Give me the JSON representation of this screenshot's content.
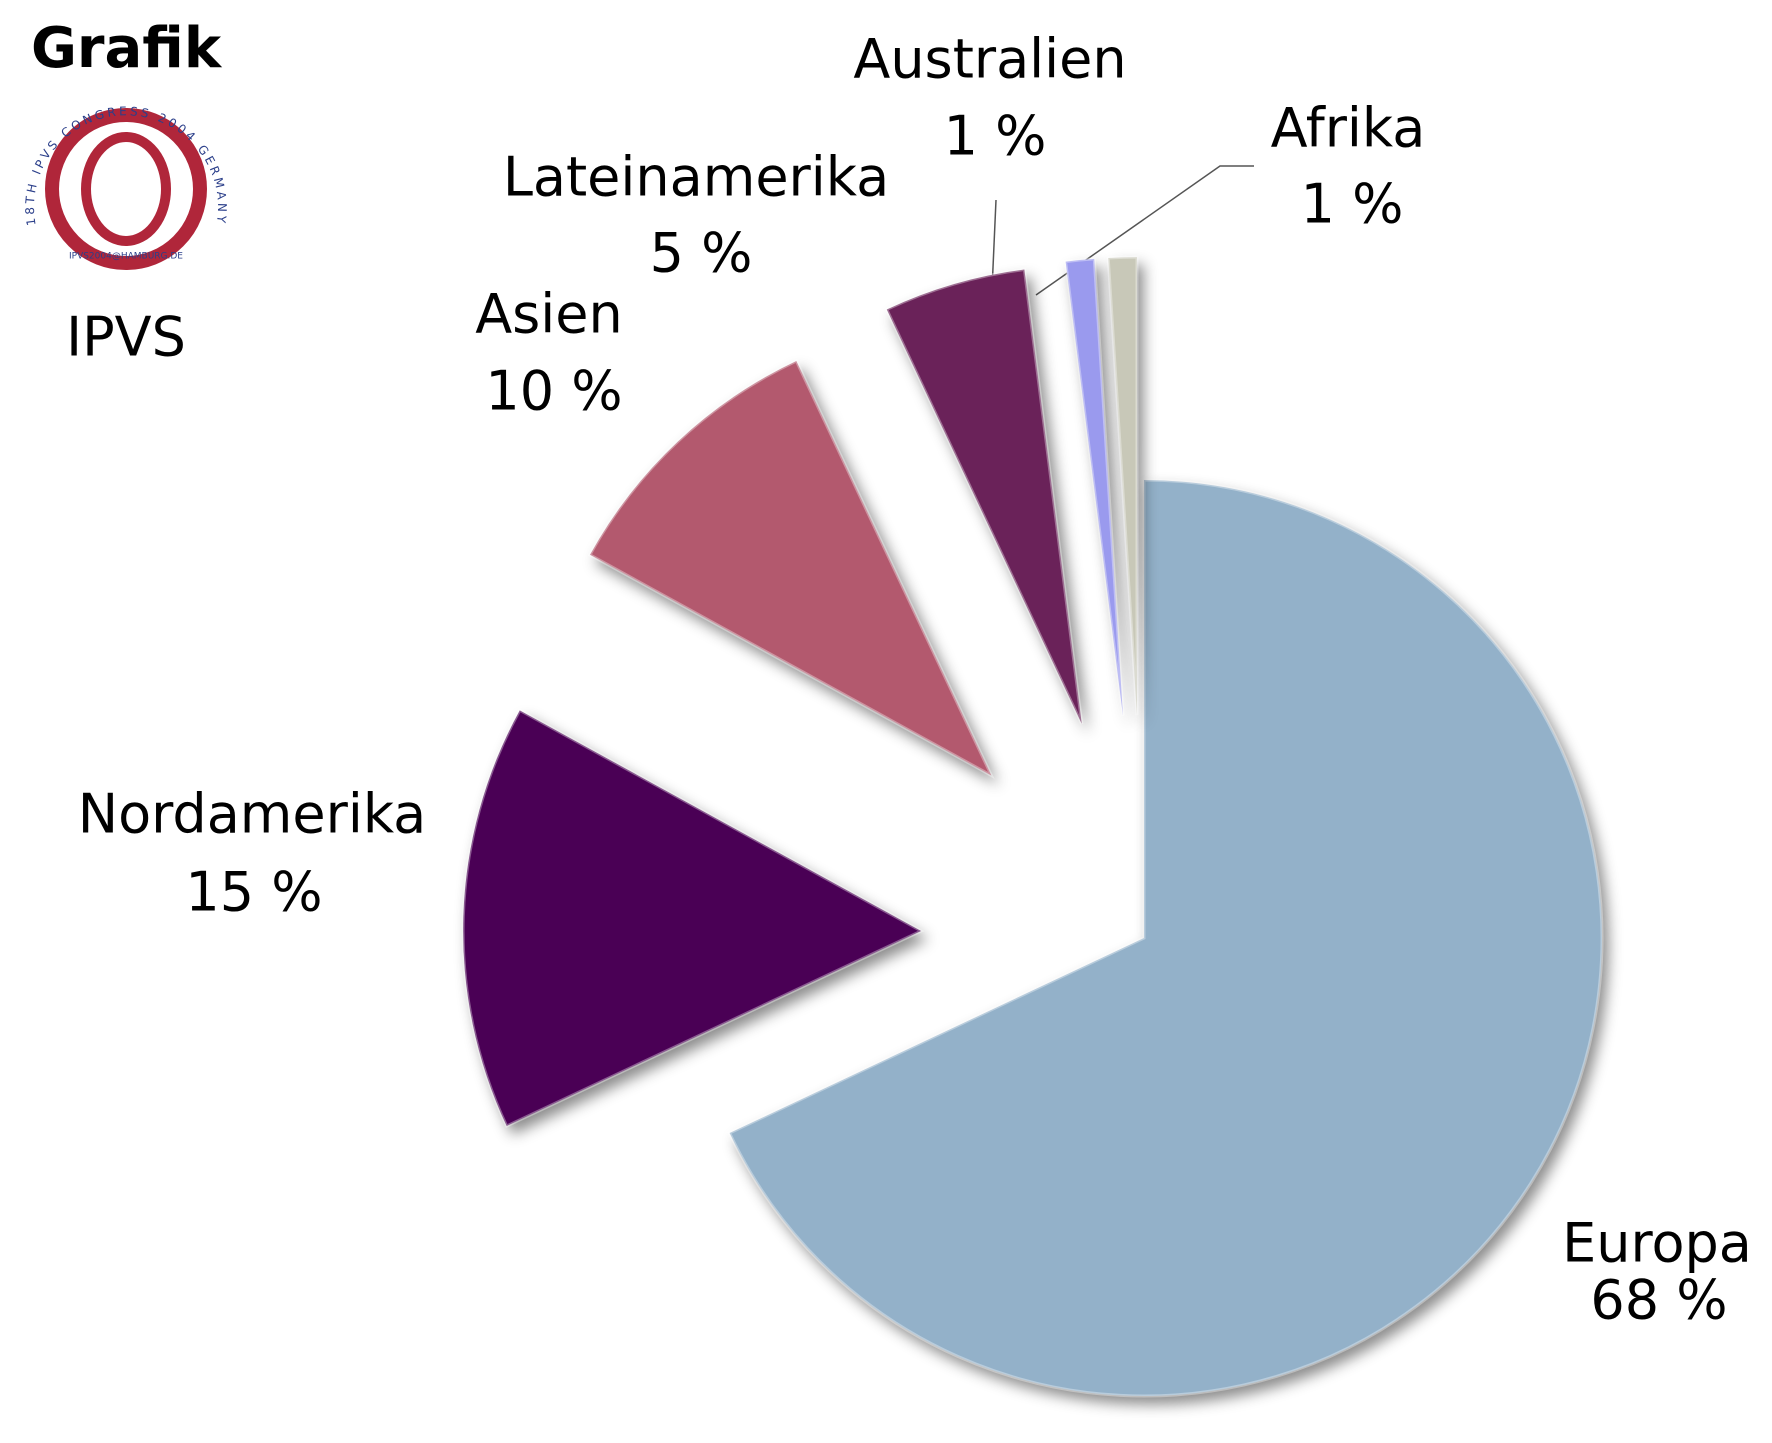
{
  "header": {
    "title": "Grafik",
    "subtitle": "IPVS"
  },
  "logo": {
    "ring_text": "18TH IPVS CONGRESS 2004 GERMANY",
    "email": "IPVS2004@HAMBURG.DE"
  },
  "chart_data": {
    "type": "pie",
    "categories": [
      "Europa",
      "Nordamerika",
      "Asien",
      "Lateinamerika",
      "Australien",
      "Afrika"
    ],
    "values": [
      68,
      15,
      10,
      5,
      1,
      1
    ],
    "value_labels": [
      "68 %",
      "15 %",
      "10 %",
      "5 %",
      "1 %",
      "1 %"
    ],
    "colors": [
      "#93b1c9",
      "#4a0055",
      "#b3596e",
      "#6a2259",
      "#9a9aee",
      "#c8c8b8"
    ]
  }
}
